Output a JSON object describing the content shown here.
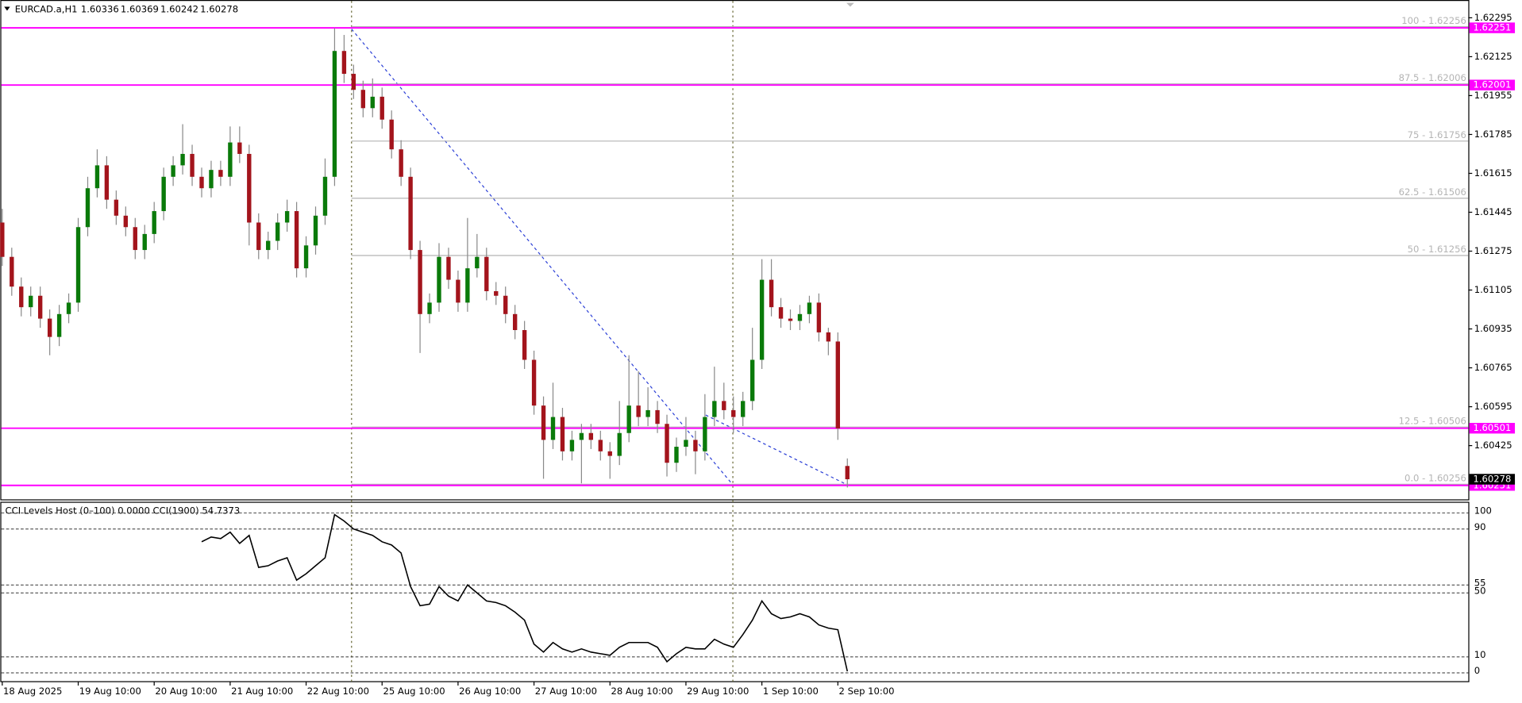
{
  "chart_data": [
    {
      "type": "candlestick",
      "symbol": "EURCAD.a,H1",
      "categories": [
        "18 Aug 2025",
        null,
        null,
        null,
        null,
        null,
        null,
        null,
        "19 Aug 10:00",
        null,
        null,
        null,
        null,
        null,
        null,
        null,
        "20 Aug 10:00",
        null,
        null,
        null,
        null,
        null,
        null,
        null,
        "21 Aug 10:00",
        null,
        null,
        null,
        null,
        null,
        null,
        null,
        "22 Aug 10:00",
        null,
        null,
        null,
        null,
        null,
        null,
        null,
        "25 Aug 10:00",
        null,
        null,
        null,
        null,
        null,
        null,
        null,
        "26 Aug 10:00",
        null,
        null,
        null,
        null,
        null,
        null,
        null,
        "27 Aug 10:00",
        null,
        null,
        null,
        null,
        null,
        null,
        null,
        "28 Aug 10:00",
        null,
        null,
        null,
        null,
        null,
        null,
        null,
        "29 Aug 10:00",
        null,
        null,
        null,
        null,
        null,
        null,
        null,
        "1 Sep 10:00",
        null,
        null,
        null,
        null,
        null,
        null,
        null,
        "2 Sep 10:00",
        null
      ],
      "open": [
        1.614,
        1.6125,
        1.6112,
        1.6103,
        1.6108,
        1.6098,
        1.609,
        1.61,
        1.6105,
        1.6138,
        1.6155,
        1.6165,
        1.615,
        1.6143,
        1.6138,
        1.6128,
        1.6135,
        1.6145,
        1.616,
        1.6165,
        1.617,
        1.616,
        1.6155,
        1.6163,
        1.616,
        1.6175,
        1.617,
        1.614,
        1.6128,
        1.6132,
        1.614,
        1.6145,
        1.612,
        1.613,
        1.6143,
        1.616,
        1.6215,
        1.6205,
        1.6198,
        1.619,
        1.6195,
        1.6185,
        1.6172,
        1.616,
        1.6128,
        1.61,
        1.6105,
        1.6125,
        1.6115,
        1.6105,
        1.612,
        1.6125,
        1.611,
        1.6108,
        1.61,
        1.6093,
        1.608,
        1.606,
        1.6045,
        1.6055,
        1.604,
        1.6045,
        1.6048,
        1.6045,
        1.604,
        1.6038,
        1.6048,
        1.606,
        1.6055,
        1.6058,
        1.6052,
        1.6035,
        1.6042,
        1.6045,
        1.604,
        1.6055,
        1.6062,
        1.6058,
        1.6055,
        1.6062,
        1.608,
        1.6115,
        1.6103,
        1.6098,
        1.6097,
        1.61,
        1.6105,
        1.6092,
        1.6088,
        1.60336
      ],
      "high": [
        1.6146,
        1.6129,
        1.6116,
        1.6112,
        1.6112,
        1.6102,
        1.6104,
        1.6109,
        1.6142,
        1.616,
        1.6172,
        1.6169,
        1.6154,
        1.6147,
        1.6142,
        1.6139,
        1.6149,
        1.6164,
        1.6169,
        1.6183,
        1.6174,
        1.6164,
        1.6167,
        1.6167,
        1.6182,
        1.6182,
        1.6174,
        1.6144,
        1.6136,
        1.6144,
        1.615,
        1.6149,
        1.6134,
        1.6147,
        1.6168,
        1.6225,
        1.6222,
        1.6209,
        1.6202,
        1.6203,
        1.6199,
        1.6189,
        1.6176,
        1.6164,
        1.6132,
        1.6109,
        1.6131,
        1.6129,
        1.6119,
        1.6142,
        1.6135,
        1.6129,
        1.6114,
        1.6112,
        1.6104,
        1.6097,
        1.6084,
        1.6064,
        1.607,
        1.6059,
        1.6049,
        1.6052,
        1.6052,
        1.6049,
        1.6044,
        1.6062,
        1.6082,
        1.6075,
        1.6068,
        1.6062,
        1.6056,
        1.6046,
        1.6055,
        1.6049,
        1.6065,
        1.6077,
        1.607,
        1.6064,
        1.6066,
        1.6094,
        1.6124,
        1.6124,
        1.6107,
        1.6102,
        1.6104,
        1.6108,
        1.6109,
        1.6094,
        1.6092,
        1.60369
      ],
      "low": [
        1.6121,
        1.6108,
        1.6099,
        1.6099,
        1.6094,
        1.6082,
        1.6086,
        1.6096,
        1.6101,
        1.6134,
        1.6151,
        1.6146,
        1.6139,
        1.6134,
        1.6124,
        1.6124,
        1.6131,
        1.6141,
        1.6156,
        1.6161,
        1.6156,
        1.6151,
        1.6151,
        1.6156,
        1.6156,
        1.6166,
        1.613,
        1.6124,
        1.6124,
        1.6128,
        1.6136,
        1.6116,
        1.6116,
        1.6126,
        1.6139,
        1.6156,
        1.6201,
        1.6194,
        1.6186,
        1.6186,
        1.6181,
        1.6168,
        1.6156,
        1.6124,
        1.6083,
        1.6096,
        1.6101,
        1.6111,
        1.6101,
        1.6101,
        1.6116,
        1.6106,
        1.6104,
        1.6096,
        1.6089,
        1.6076,
        1.6056,
        1.6028,
        1.6041,
        1.6036,
        1.6036,
        1.6026,
        1.6041,
        1.6036,
        1.6028,
        1.6034,
        1.6044,
        1.6051,
        1.6051,
        1.6048,
        1.6029,
        1.6031,
        1.6038,
        1.603,
        1.6036,
        1.6051,
        1.6054,
        1.6048,
        1.6051,
        1.6058,
        1.6076,
        1.6099,
        1.6094,
        1.6093,
        1.6093,
        1.6096,
        1.6088,
        1.6082,
        1.6045,
        1.60242
      ],
      "close": [
        1.6125,
        1.6112,
        1.6103,
        1.6108,
        1.6098,
        1.609,
        1.61,
        1.6105,
        1.6138,
        1.6155,
        1.6165,
        1.615,
        1.6143,
        1.6138,
        1.6128,
        1.6135,
        1.6145,
        1.616,
        1.6165,
        1.617,
        1.616,
        1.6155,
        1.6163,
        1.616,
        1.6175,
        1.617,
        1.614,
        1.6128,
        1.6132,
        1.614,
        1.6145,
        1.612,
        1.613,
        1.6143,
        1.616,
        1.6215,
        1.6205,
        1.6198,
        1.619,
        1.6195,
        1.6185,
        1.6172,
        1.616,
        1.6128,
        1.61,
        1.6105,
        1.6125,
        1.6115,
        1.6105,
        1.612,
        1.6125,
        1.611,
        1.6108,
        1.61,
        1.6093,
        1.608,
        1.606,
        1.6045,
        1.6055,
        1.604,
        1.6045,
        1.6048,
        1.6045,
        1.604,
        1.6038,
        1.6048,
        1.606,
        1.6055,
        1.6058,
        1.6052,
        1.6035,
        1.6042,
        1.6045,
        1.604,
        1.6055,
        1.6062,
        1.6058,
        1.6055,
        1.6062,
        1.608,
        1.6115,
        1.6103,
        1.6098,
        1.6097,
        1.61,
        1.6105,
        1.6092,
        1.6088,
        1.605,
        1.60278
      ],
      "up_color": "#0a7a0a",
      "down_color": "#a3141c",
      "wick_color": "#8a8a8a",
      "ylim": [
        1.6019,
        1.6236
      ],
      "yticks": [
        1.62295,
        1.62125,
        1.61955,
        1.61785,
        1.61615,
        1.61445,
        1.61275,
        1.61105,
        1.60935,
        1.60765,
        1.60595,
        1.60425
      ],
      "levels": {
        "color": "#ff00ff",
        "values": [
          1.62251,
          1.62001,
          1.60501,
          1.60251
        ]
      },
      "fib_color": "#b4b4b4",
      "fib_levels": [
        {
          "value": 1.62256,
          "label": "100 - 1.62256"
        },
        {
          "value": 1.62006,
          "label": "87.5 - 1.62006"
        },
        {
          "value": 1.61756,
          "label": "75 - 1.61756"
        },
        {
          "value": 1.61506,
          "label": "62.5 - 1.61506"
        },
        {
          "value": 1.61256,
          "label": "50 - 1.61256"
        },
        {
          "value": 1.60506,
          "label": "12.5 - 1.60506"
        },
        {
          "value": 1.60256,
          "label": "0.0 - 1.60256"
        }
      ]
    },
    {
      "type": "line",
      "title": "CCI Levels Host (0–100) 0.0000  CCI(1900) 54.7373",
      "color": "#000000",
      "values": [
        null,
        null,
        null,
        null,
        null,
        null,
        null,
        null,
        null,
        null,
        null,
        null,
        null,
        null,
        null,
        null,
        null,
        null,
        null,
        null,
        null,
        82,
        85,
        84,
        88,
        81,
        86,
        66,
        67,
        70,
        72,
        58,
        62,
        67,
        72,
        99,
        95,
        90,
        88,
        86,
        82,
        80,
        75,
        54,
        42,
        43,
        54,
        48,
        45,
        55,
        50,
        45,
        44,
        42,
        38,
        33,
        18,
        13,
        19,
        15,
        13,
        15,
        13,
        12,
        11,
        16,
        19,
        19,
        19,
        16,
        7,
        12,
        16,
        15,
        15,
        21,
        18,
        16,
        24,
        33,
        45,
        37,
        34,
        35,
        37,
        35,
        30,
        28,
        27,
        1
      ],
      "ylim": [
        -5.5,
        105.5
      ],
      "yticks": [
        0,
        10,
        50,
        55,
        90,
        100
      ]
    }
  ]
}
